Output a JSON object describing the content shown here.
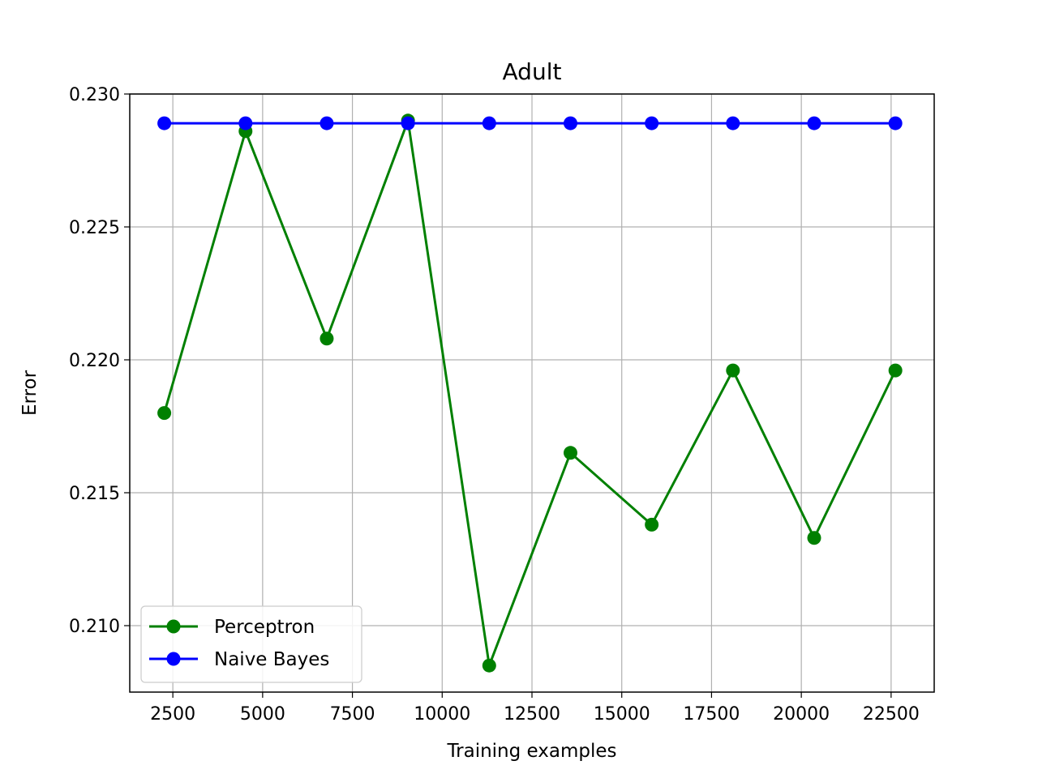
{
  "chart_data": {
    "type": "line",
    "title": "Adult",
    "xlabel": "Training examples",
    "ylabel": "Error",
    "xlim": [
      1300,
      23700
    ],
    "ylim": [
      0.2075,
      0.23
    ],
    "xticks": [
      2500,
      5000,
      7500,
      10000,
      12500,
      15000,
      17500,
      20000,
      22500
    ],
    "yticks": [
      0.21,
      0.215,
      0.22,
      0.225,
      0.23
    ],
    "xtick_labels": [
      "2500",
      "5000",
      "7500",
      "10000",
      "12500",
      "15000",
      "17500",
      "20000",
      "22500"
    ],
    "ytick_labels": [
      "0.210",
      "0.215",
      "0.220",
      "0.225",
      "0.230"
    ],
    "grid": true,
    "legend_position": "lower-left",
    "x": [
      2262,
      4524,
      6786,
      9048,
      11310,
      13572,
      15834,
      18096,
      20358,
      22620
    ],
    "series": [
      {
        "name": "Perceptron",
        "color": "#008000",
        "marker": "circle",
        "values": [
          0.218,
          0.2286,
          0.2208,
          0.229,
          0.2085,
          0.2165,
          0.2138,
          0.2196,
          0.2133,
          0.2196
        ]
      },
      {
        "name": "Naive Bayes",
        "color": "#0000ff",
        "marker": "circle",
        "values": [
          0.2289,
          0.2289,
          0.2289,
          0.2289,
          0.2289,
          0.2289,
          0.2289,
          0.2289,
          0.2289,
          0.2289
        ]
      }
    ]
  }
}
